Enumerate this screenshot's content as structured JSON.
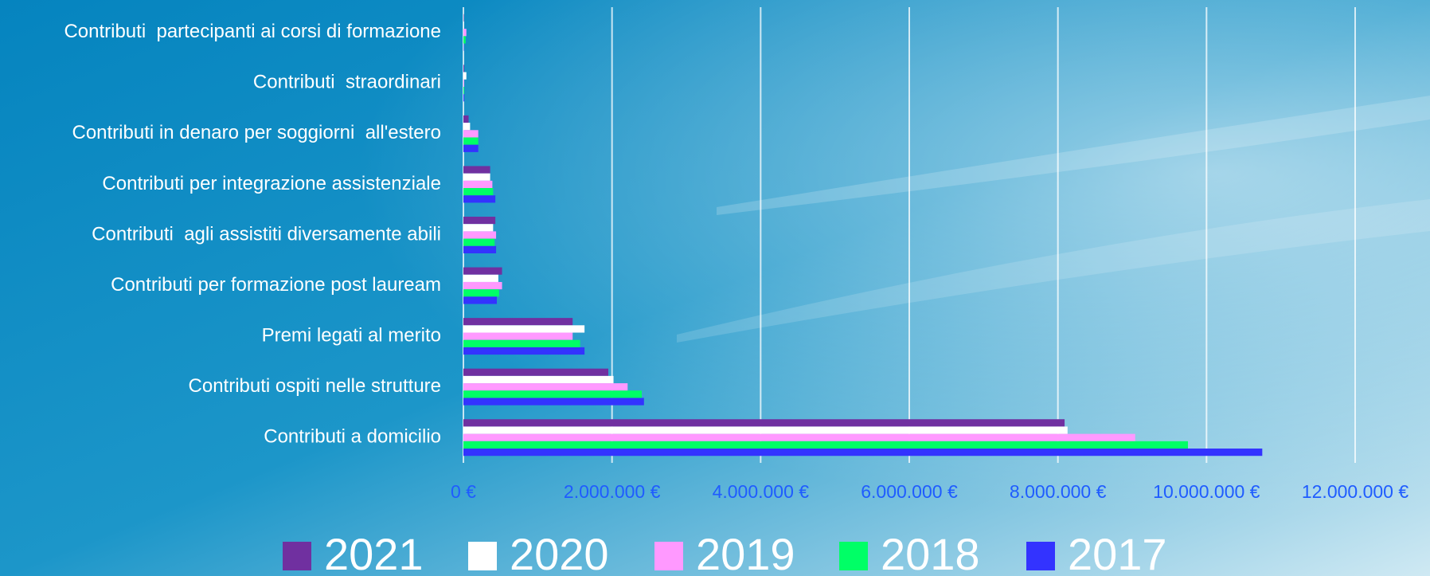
{
  "chart_data": {
    "type": "hbar",
    "categories": [
      "Contributi  partecipanti ai corsi di formazione",
      "Contributi  straordinari",
      "Contributi in denaro per soggiorni  all'estero",
      "Contributi per integrazione assistenziale",
      "Contributi  agli assistiti diversamente abili",
      "Contributi per formazione post lauream",
      "Premi legati al merito",
      "Contributi ospiti nelle strutture",
      "Contributi a domicilio"
    ],
    "series": [
      {
        "name": "2021",
        "color": "#7030a0",
        "values": [
          5000,
          10000,
          70000,
          360000,
          430000,
          520000,
          1470000,
          1950000,
          8090000
        ]
      },
      {
        "name": "2020",
        "color": "#ffffff",
        "values": [
          5000,
          40000,
          90000,
          360000,
          400000,
          470000,
          1630000,
          2020000,
          8130000
        ]
      },
      {
        "name": "2019",
        "color": "#ff99ff",
        "values": [
          40000,
          10000,
          200000,
          390000,
          440000,
          520000,
          1470000,
          2210000,
          9040000
        ]
      },
      {
        "name": "2018",
        "color": "#00ff66",
        "values": [
          30000,
          10000,
          200000,
          400000,
          420000,
          480000,
          1570000,
          2400000,
          9750000
        ]
      },
      {
        "name": "2017",
        "color": "#3333ff",
        "values": [
          5000,
          10000,
          200000,
          430000,
          440000,
          450000,
          1630000,
          2430000,
          10750000
        ]
      }
    ],
    "xlim": [
      0,
      12000000
    ],
    "xticks": [
      {
        "value": 0,
        "label": "0 €"
      },
      {
        "value": 2000000,
        "label": "2.000.000 €"
      },
      {
        "value": 4000000,
        "label": "4.000.000 €"
      },
      {
        "value": 6000000,
        "label": "6.000.000 €"
      },
      {
        "value": 8000000,
        "label": "8.000.000 €"
      },
      {
        "value": 10000000,
        "label": "10.000.000 €"
      },
      {
        "value": 12000000,
        "label": "12.000.000 €"
      }
    ],
    "grid": true
  }
}
